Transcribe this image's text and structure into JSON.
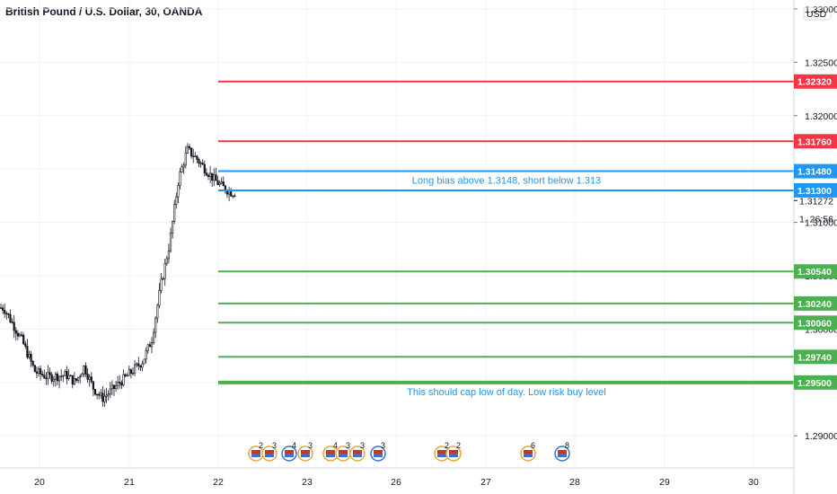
{
  "chart_data": {
    "type": "candlestick",
    "title": "British Pound / U.S. Dollar, 30, OANDA",
    "currency": "USD",
    "x_ticks": [
      "20",
      "21",
      "22",
      "23",
      "26",
      "27",
      "28",
      "29",
      "30"
    ],
    "y_ticks": [
      "1.33000",
      "1.32500",
      "1.32000",
      "1.31500",
      "1.31000",
      "1.30500",
      "1.30000",
      "1.29500",
      "1.29000"
    ],
    "ylim": [
      1.288,
      1.3305
    ],
    "last_price": "1.31272",
    "countdown": "26:56",
    "levels": [
      {
        "value": 1.3232,
        "label": "1.32320",
        "color": "#f23645"
      },
      {
        "value": 1.3176,
        "label": "1.31760",
        "color": "#f23645"
      },
      {
        "value": 1.3148,
        "label": "1.31480",
        "color": "#2196f3"
      },
      {
        "value": 1.313,
        "label": "1.31300",
        "color": "#2196f3"
      },
      {
        "value": 1.3054,
        "label": "1.30540",
        "color": "#4caf50"
      },
      {
        "value": 1.3024,
        "label": "1.30240",
        "color": "#4caf50"
      },
      {
        "value": 1.3006,
        "label": "1.30060",
        "color": "#4caf50"
      },
      {
        "value": 1.2974,
        "label": "1.29740",
        "color": "#4caf50"
      },
      {
        "value": 1.295,
        "label": "1.29500",
        "color": "#4caf50"
      }
    ],
    "annotations": [
      {
        "text": "Long bias above 1.3148, short below 1.313",
        "color": "#2196f3"
      },
      {
        "text": "This should cap low of day. Low risk buy level",
        "color": "#2196f3"
      }
    ],
    "event_markers": [
      "2",
      "3",
      "4",
      "3",
      "4",
      "3",
      "3",
      "3",
      "2",
      "2",
      "6",
      "8"
    ],
    "price_path": [
      [
        "19.6",
        1.302
      ],
      [
        "19.8",
        1.299
      ],
      [
        "19.95",
        1.296
      ],
      [
        "20.1",
        1.2955
      ],
      [
        "20.3",
        1.2957
      ],
      [
        "20.4",
        1.295
      ],
      [
        "20.5",
        1.2965
      ],
      [
        "20.6",
        1.2945
      ],
      [
        "20.7",
        1.2935
      ],
      [
        "20.8",
        1.2942
      ],
      [
        "20.9",
        1.295
      ],
      [
        "21.0",
        1.2958
      ],
      [
        "21.15",
        1.297
      ],
      [
        "21.25",
        1.299
      ],
      [
        "21.35",
        1.304
      ],
      [
        "21.45",
        1.308
      ],
      [
        "21.55",
        1.314
      ],
      [
        "21.65",
        1.3168
      ],
      [
        "21.75",
        1.316
      ],
      [
        "21.85",
        1.315
      ],
      [
        "21.95",
        1.314
      ],
      [
        "22.05",
        1.3133
      ],
      [
        "22.15",
        1.3128
      ]
    ]
  },
  "colors": {
    "up": "#26a69a",
    "down": "#131722",
    "grid": "#f0f3fa",
    "axis_text": "#131722"
  }
}
